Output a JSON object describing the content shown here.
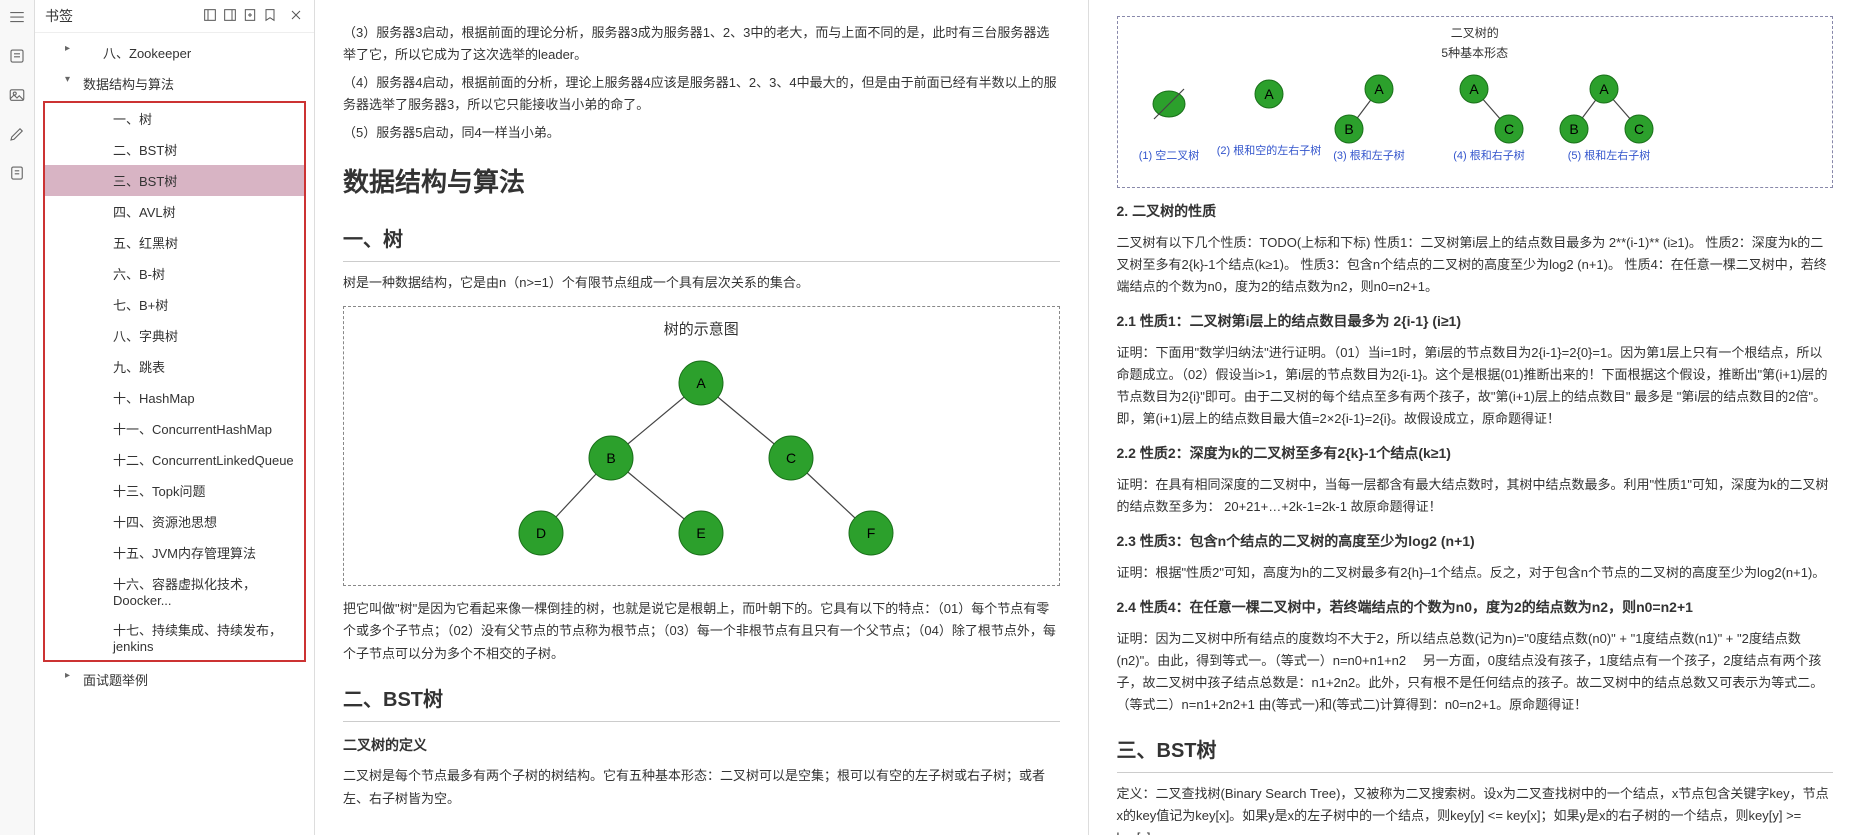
{
  "sidebar": {
    "title": "书签",
    "items_top": [
      {
        "label": "八、Zookeeper",
        "type": "col"
      }
    ],
    "section_label": "数据结构与算法",
    "boxed_items": [
      "一、树",
      "二、BST树",
      "三、BST树",
      "四、AVL树",
      "五、红黑树",
      "六、B-树",
      "七、B+树",
      "八、字典树",
      "九、跳表",
      "十、HashMap",
      "十一、ConcurrentHashMap",
      "十二、ConcurrentLinkedQueue",
      "十三、Topk问题",
      "十四、资源池思想",
      "十五、JVM内存管理算法",
      "十六、容器虚拟化技术，Doocker...",
      "十七、持续集成、持续发布，jenkins"
    ],
    "selected_index": 2,
    "items_bottom": [
      {
        "label": "面试题举例",
        "type": "col"
      }
    ]
  },
  "col1": {
    "p3": "（3）服务器3启动，根据前面的理论分析，服务器3成为服务器1、2、3中的老大，而与上面不同的是，此时有三台服务器选举了它，所以它成为了这次选举的leader。",
    "p4": "（4）服务器4启动，根据前面的分析，理论上服务器4应该是服务器1、2、3、4中最大的，但是由于前面已经有半数以上的服务器选举了服务器3，所以它只能接收当小弟的命了。",
    "p5": "（5）服务器5启动，同4一样当小弟。",
    "h1": "数据结构与算法",
    "s1": {
      "title": "一、树",
      "p1": "树是一种数据结构，它是由n（n>=1）个有限节点组成一个具有层次关系的集合。",
      "diagram_title": "树的示意图",
      "nodes": [
        "A",
        "B",
        "C",
        "D",
        "E",
        "F"
      ],
      "p2": "把它叫做\"树\"是因为它看起来像一棵倒挂的树，也就是说它是根朝上，而叶朝下的。它具有以下的特点：（01）每个节点有零个或多个子节点；（02）没有父节点的节点称为根节点；（03）每一个非根节点有且只有一个父节点；（04）除了根节点外，每个子节点可以分为多个不相交的子树。"
    },
    "s2": {
      "title": "二、BST树",
      "sub": "二叉树的定义",
      "p1": "二叉树是每个节点最多有两个子树的树结构。它有五种基本形态：二叉树可以是空集；根可以有空的左子树或右子树；或者左、右子树皆为空。"
    }
  },
  "col2": {
    "forms": {
      "title1": "二叉树的",
      "title2": "5种基本形态",
      "labels": [
        "(1) 空二叉树",
        "(2) 根和空的左右子树",
        "(3) 根和左子树",
        "(4) 根和右子树",
        "(5) 根和左右子树"
      ]
    },
    "h_prop": "2. 二叉树的性质",
    "p_prop": "二叉树有以下几个性质：TODO(上标和下标) 性质1：二叉树第i层上的结点数目最多为 2**(i-1)** (i≥1)。 性质2：深度为k的二叉树至多有2{k}-1个结点(k≥1)。 性质3：包含n个结点的二叉树的高度至少为log2 (n+1)。 性质4：在任意一棵二叉树中，若终端结点的个数为n0，度为2的结点数为n2，则n0=n2+1。",
    "h21": "2.1 性质1：二叉树第i层上的结点数目最多为 2{i-1} (i≥1)",
    "p21": "证明：下面用\"数学归纳法\"进行证明。（01）当i=1时，第i层的节点数目为2{i-1}=2{0}=1。因为第1层上只有一个根结点，所以命题成立。（02）假设当i>1，第i层的节点数目为2{i-1}。这个是根据(01)推断出来的！下面根据这个假设，推断出\"第(i+1)层的节点数目为2{i}\"即可。由于二叉树的每个结点至多有两个孩子，故\"第(i+1)层上的结点数目\" 最多是 \"第i层的结点数目的2倍\"。即，第(i+1)层上的结点数目最大值=2×2{i-1}=2{i}。故假设成立，原命题得证！",
    "h22": "2.2 性质2：深度为k的二叉树至多有2{k}-1个结点(k≥1)",
    "p22": "证明：在具有相同深度的二叉树中，当每一层都含有最大结点数时，其树中结点数最多。利用\"性质1\"可知，深度为k的二叉树的结点数至多为： 20+21+…+2k-1=2k-1 故原命题得证！",
    "h23": "2.3 性质3：包含n个结点的二叉树的高度至少为log2 (n+1)",
    "p23": "证明：根据\"性质2\"可知，高度为h的二叉树最多有2{h}–1个结点。反之，对于包含n个节点的二叉树的高度至少为log2(n+1)。",
    "h24": "2.4 性质4：在任意一棵二叉树中，若终端结点的个数为n0，度为2的结点数为n2，则n0=n2+1",
    "p24": "证明：因为二叉树中所有结点的度数均不大于2，所以结点总数(记为n)=\"0度结点数(n0)\" + \"1度结点数(n1)\" + \"2度结点数(n2)\"。由此，得到等式一。（等式一）n=n0+n1+n2　 另一方面，0度结点没有孩子，1度结点有一个孩子，2度结点有两个孩子，故二叉树中孩子结点总数是：n1+2n2。此外，只有根不是任何结点的孩子。故二叉树中的结点总数又可表示为等式二。（等式二）n=n1+2n2+1 由(等式一)和(等式二)计算得到：n0=n2+1。原命题得证！",
    "h3": "三、BST树",
    "p3": "定义：二叉查找树(Binary Search Tree)，又被称为二叉搜索树。设x为二叉查找树中的一个结点，x节点包含关键字key，节点x的key值记为key[x]。如果y是x的左子树中的一个结点，则key[y] <= key[x]；如果y是x的右子树的一个结点，则key[y] >= key[x]。"
  }
}
